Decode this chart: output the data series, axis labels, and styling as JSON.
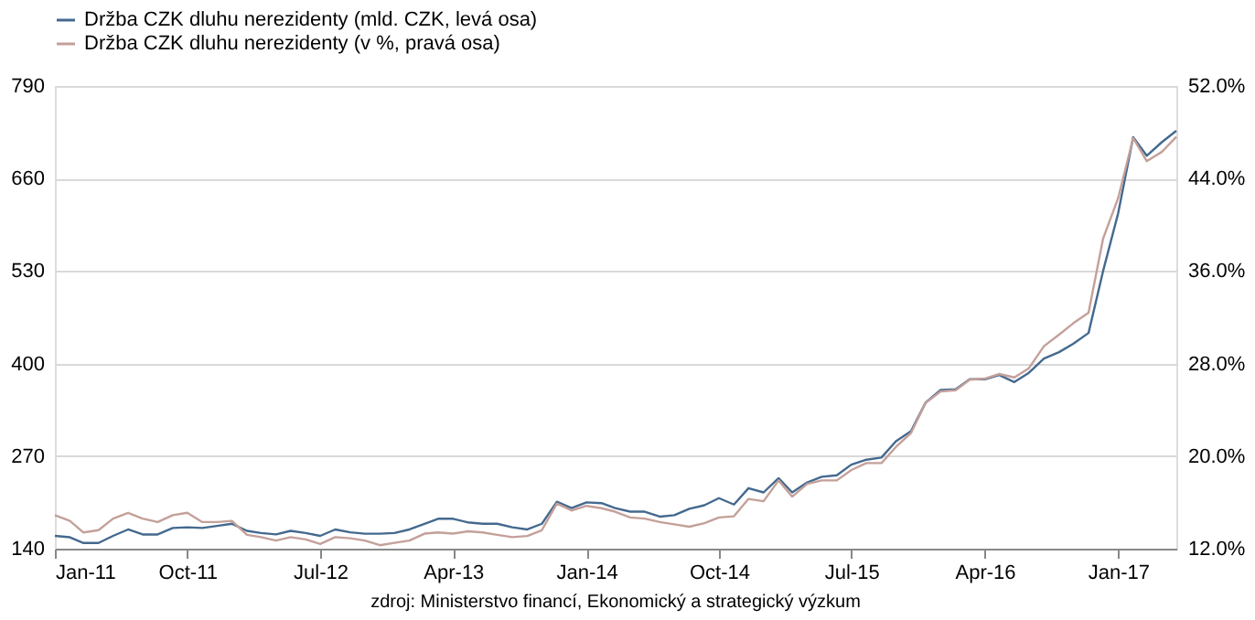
{
  "chart_data": {
    "type": "line",
    "x": [
      "2011-01",
      "2011-02",
      "2011-03",
      "2011-04",
      "2011-05",
      "2011-06",
      "2011-07",
      "2011-08",
      "2011-09",
      "2011-10",
      "2011-11",
      "2011-12",
      "2012-01",
      "2012-02",
      "2012-03",
      "2012-04",
      "2012-05",
      "2012-06",
      "2012-07",
      "2012-08",
      "2012-09",
      "2012-10",
      "2012-11",
      "2012-12",
      "2013-01",
      "2013-02",
      "2013-03",
      "2013-04",
      "2013-05",
      "2013-06",
      "2013-07",
      "2013-08",
      "2013-09",
      "2013-10",
      "2013-11",
      "2013-12",
      "2014-01",
      "2014-02",
      "2014-03",
      "2014-04",
      "2014-05",
      "2014-06",
      "2014-07",
      "2014-08",
      "2014-09",
      "2014-10",
      "2014-11",
      "2014-12",
      "2015-01",
      "2015-02",
      "2015-03",
      "2015-04",
      "2015-05",
      "2015-06",
      "2015-07",
      "2015-08",
      "2015-09",
      "2015-10",
      "2015-11",
      "2015-12",
      "2016-01",
      "2016-02",
      "2016-03",
      "2016-04",
      "2016-05",
      "2016-06",
      "2016-07",
      "2016-08",
      "2016-09",
      "2016-10",
      "2016-11",
      "2016-12",
      "2017-01",
      "2017-02",
      "2017-03",
      "2017-04",
      "2017-05"
    ],
    "series": [
      {
        "name": "Držba CZK dluhu nerezidenty (mld. CZK, levá osa)",
        "color": "#44698f",
        "values": [
          158,
          156,
          148,
          148,
          158,
          167,
          160,
          160,
          169,
          170,
          169,
          172,
          175,
          165,
          162,
          160,
          165,
          162,
          158,
          167,
          163,
          161,
          161,
          162,
          167,
          175,
          182,
          182,
          177,
          175,
          175,
          170,
          167,
          175,
          206,
          197,
          205,
          204,
          197,
          192,
          192,
          185,
          187,
          196,
          201,
          211,
          202,
          225,
          219,
          239,
          219,
          233,
          241,
          243,
          258,
          265,
          268,
          291,
          305,
          345,
          363,
          364,
          378,
          378,
          384,
          374,
          387,
          407,
          416,
          428,
          443,
          530,
          611,
          718,
          692,
          711,
          727
        ]
      },
      {
        "name": "Držba CZK dluhu nerezidenty (v %, pravá osa)",
        "color": "#c4a09a",
        "axis": "y2",
        "values": [
          14.9,
          14.4,
          13.4,
          13.6,
          14.6,
          15.1,
          14.6,
          14.3,
          14.9,
          15.1,
          14.3,
          14.3,
          14.4,
          13.2,
          13.0,
          12.7,
          13.0,
          12.8,
          12.4,
          13.0,
          12.9,
          12.7,
          12.3,
          12.5,
          12.7,
          13.3,
          13.4,
          13.3,
          13.5,
          13.4,
          13.2,
          13.0,
          13.1,
          13.6,
          15.9,
          15.3,
          15.7,
          15.5,
          15.2,
          14.7,
          14.6,
          14.3,
          14.1,
          13.9,
          14.2,
          14.7,
          14.8,
          16.3,
          16.1,
          17.9,
          16.5,
          17.6,
          17.9,
          17.9,
          18.8,
          19.4,
          19.4,
          20.8,
          22.0,
          24.6,
          25.6,
          25.7,
          26.6,
          26.7,
          27.1,
          26.8,
          27.6,
          29.5,
          30.5,
          31.5,
          32.4,
          38.8,
          42.3,
          47.5,
          45.5,
          46.3,
          47.6
        ]
      }
    ],
    "xlim": [
      "2011-01",
      "2017-05"
    ],
    "xticks": [
      {
        "value": "2011-01",
        "label": "Jan-11"
      },
      {
        "value": "2011-10",
        "label": "Oct-11"
      },
      {
        "value": "2012-07",
        "label": "Jul-12"
      },
      {
        "value": "2013-04",
        "label": "Apr-13"
      },
      {
        "value": "2014-01",
        "label": "Jan-14"
      },
      {
        "value": "2014-10",
        "label": "Oct-14"
      },
      {
        "value": "2015-07",
        "label": "Jul-15"
      },
      {
        "value": "2016-04",
        "label": "Apr-16"
      },
      {
        "value": "2017-01",
        "label": "Jan-17"
      }
    ],
    "ylim": [
      140,
      790
    ],
    "yticks": [
      140,
      270,
      400,
      530,
      660,
      790
    ],
    "y2lim": [
      12,
      52
    ],
    "y2ticks": [
      {
        "value": 12,
        "label": "12.0%"
      },
      {
        "value": 20,
        "label": "20.0%"
      },
      {
        "value": 28,
        "label": "28.0%"
      },
      {
        "value": 36,
        "label": "36.0%"
      },
      {
        "value": 44,
        "label": "44.0%"
      },
      {
        "value": 52,
        "label": "52.0%"
      }
    ],
    "grid": "y",
    "legend": "top",
    "marker": "none",
    "line_style": "solid",
    "annotations": [
      "zdroj: Ministerstvo financí, Ekonomický a strategický výzkum"
    ]
  }
}
